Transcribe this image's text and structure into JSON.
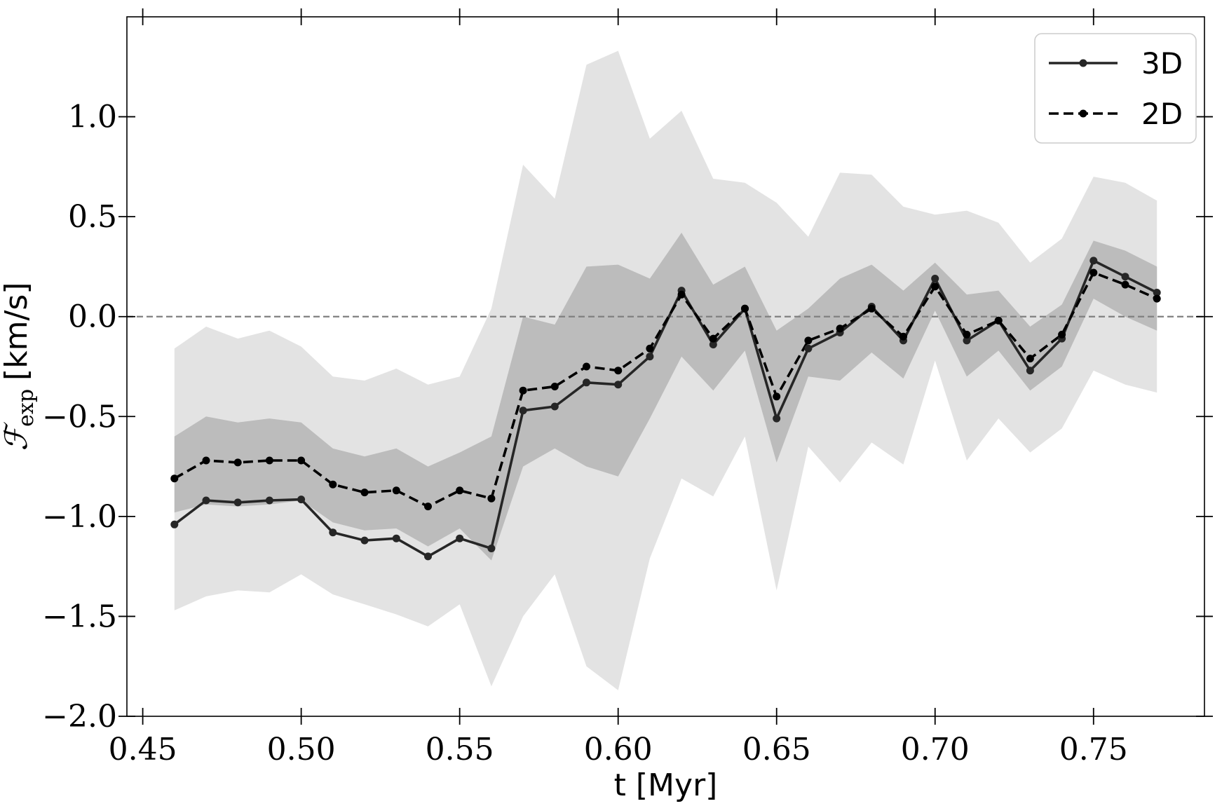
{
  "chart_data": {
    "type": "line",
    "xlabel": "t [Myr]",
    "ylabel": "ℱexp [km/s]",
    "ylabel_symbol": "ℱ",
    "ylabel_subscript": "exp",
    "ylabel_unit": "[km/s]",
    "xlim": [
      0.445,
      0.785
    ],
    "ylim": [
      -2.0,
      1.5
    ],
    "x_ticks": [
      0.45,
      0.5,
      0.55,
      0.6,
      0.65,
      0.7,
      0.75
    ],
    "x_tick_labels": [
      "0.45",
      "0.50",
      "0.55",
      "0.60",
      "0.65",
      "0.70",
      "0.75"
    ],
    "y_ticks": [
      -2.0,
      -1.5,
      -1.0,
      -0.5,
      0.0,
      0.5,
      1.0
    ],
    "y_tick_labels": [
      "−2.0",
      "−1.5",
      "−1.0",
      "−0.5",
      "0.0",
      "0.5",
      "1.0"
    ],
    "grid": false,
    "reference_line": {
      "y": 0.0,
      "style": "dashed",
      "color": "#808080"
    },
    "legend": {
      "placement": "top-right",
      "entries": [
        "3D",
        "2D"
      ]
    },
    "x": [
      0.46,
      0.47,
      0.48,
      0.49,
      0.5,
      0.51,
      0.52,
      0.53,
      0.54,
      0.55,
      0.56,
      0.57,
      0.58,
      0.59,
      0.6,
      0.61,
      0.62,
      0.63,
      0.64,
      0.65,
      0.66,
      0.67,
      0.68,
      0.69,
      0.7,
      0.71,
      0.72,
      0.73,
      0.74,
      0.75,
      0.76,
      0.77
    ],
    "series": [
      {
        "name": "3D",
        "style": "solid",
        "color": "#262626",
        "values": [
          -1.04,
          -0.92,
          -0.93,
          -0.92,
          -0.915,
          -1.08,
          -1.12,
          -1.11,
          -1.2,
          -1.11,
          -1.16,
          -0.47,
          -0.45,
          -0.33,
          -0.34,
          -0.2,
          0.13,
          -0.14,
          0.04,
          -0.51,
          -0.16,
          -0.08,
          0.05,
          -0.12,
          0.19,
          -0.12,
          -0.02,
          -0.27,
          -0.11,
          0.28,
          0.2,
          0.12
        ]
      },
      {
        "name": "2D",
        "style": "dashed",
        "color": "#000000",
        "values": [
          -0.81,
          -0.72,
          -0.73,
          -0.72,
          -0.72,
          -0.84,
          -0.88,
          -0.87,
          -0.95,
          -0.87,
          -0.91,
          -0.37,
          -0.35,
          -0.25,
          -0.27,
          -0.16,
          0.11,
          -0.11,
          0.04,
          -0.4,
          -0.12,
          -0.06,
          0.04,
          -0.1,
          0.15,
          -0.09,
          -0.02,
          -0.21,
          -0.09,
          0.22,
          0.16,
          0.09
        ]
      }
    ],
    "bands": [
      {
        "kind": "outer",
        "color": "#e3e3e3",
        "lower": [
          -1.47,
          -1.4,
          -1.37,
          -1.38,
          -1.29,
          -1.39,
          -1.44,
          -1.49,
          -1.55,
          -1.44,
          -1.85,
          -1.5,
          -1.29,
          -1.75,
          -1.87,
          -1.21,
          -0.81,
          -0.9,
          -0.6,
          -1.37,
          -0.65,
          -0.83,
          -0.63,
          -0.74,
          -0.22,
          -0.72,
          -0.51,
          -0.68,
          -0.56,
          -0.27,
          -0.34,
          -0.38
        ],
        "upper": [
          -0.16,
          -0.05,
          -0.11,
          -0.07,
          -0.15,
          -0.3,
          -0.32,
          -0.26,
          -0.34,
          -0.3,
          0.04,
          0.76,
          0.59,
          1.26,
          1.33,
          0.89,
          1.03,
          0.69,
          0.67,
          0.57,
          0.4,
          0.72,
          0.71,
          0.55,
          0.51,
          0.53,
          0.47,
          0.27,
          0.39,
          0.7,
          0.67,
          0.58
        ]
      },
      {
        "kind": "inner",
        "color": "#bcbcbc",
        "lower": [
          -0.98,
          -0.94,
          -0.95,
          -0.94,
          -0.92,
          -1.03,
          -1.07,
          -1.06,
          -1.15,
          -1.06,
          -1.22,
          -0.75,
          -0.66,
          -0.75,
          -0.8,
          -0.51,
          -0.2,
          -0.37,
          -0.17,
          -0.73,
          -0.3,
          -0.32,
          -0.18,
          -0.31,
          0.03,
          -0.3,
          -0.17,
          -0.37,
          -0.25,
          0.09,
          0.0,
          -0.07
        ],
        "upper": [
          -0.6,
          -0.5,
          -0.53,
          -0.51,
          -0.53,
          -0.66,
          -0.7,
          -0.66,
          -0.75,
          -0.68,
          -0.6,
          0.0,
          -0.04,
          0.25,
          0.26,
          0.19,
          0.42,
          0.16,
          0.25,
          -0.07,
          0.04,
          0.19,
          0.26,
          0.13,
          0.27,
          0.11,
          0.13,
          -0.05,
          0.06,
          0.38,
          0.33,
          0.25
        ]
      }
    ]
  }
}
